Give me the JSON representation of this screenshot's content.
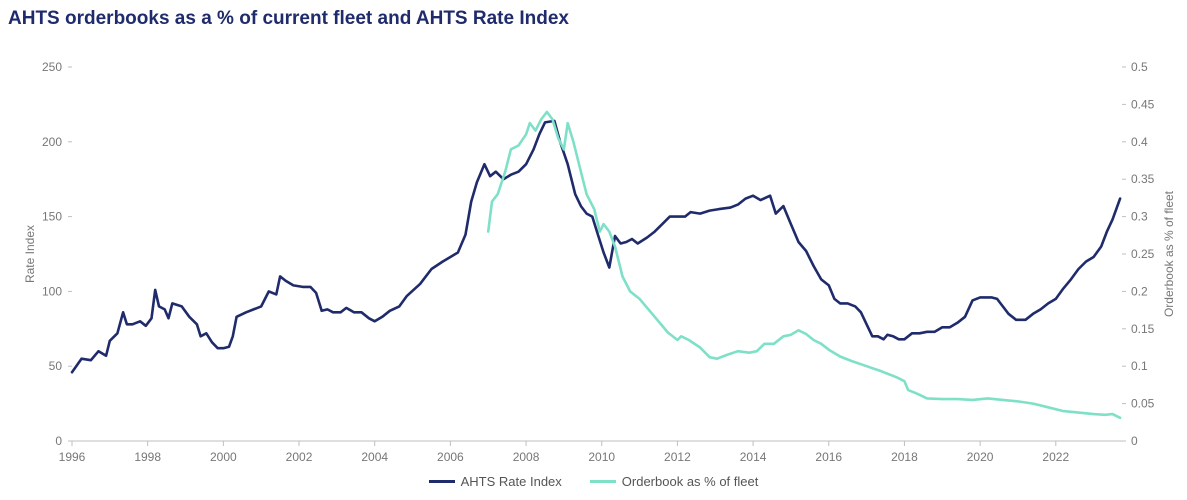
{
  "chart_data": {
    "type": "line",
    "title": "AHTS orderbooks as a % of current fleet and AHTS Rate Index",
    "y_left": {
      "label": "Rate Index",
      "min": 0,
      "max": 250,
      "ticks": [
        0,
        50,
        100,
        150,
        200,
        250
      ]
    },
    "y_right": {
      "label": "Orderbook as % of fleet",
      "min": 0,
      "max": 0.5,
      "ticks": [
        "0",
        "0.05",
        "0.1",
        "0.15",
        "0.2",
        "0.25",
        "0.3",
        "0.35",
        "0.4",
        "0.45",
        "0.5"
      ]
    },
    "x_axis": {
      "min": 1996,
      "max": 2023.75,
      "ticks": [
        1996,
        1998,
        2000,
        2002,
        2004,
        2006,
        2008,
        2010,
        2012,
        2014,
        2016,
        2018,
        2020,
        2022
      ]
    },
    "legend_position": "bottom",
    "series": [
      {
        "name": "AHTS Rate Index",
        "axis": "left",
        "color": "#1f2b6b",
        "points": [
          [
            1996.0,
            46
          ],
          [
            1996.25,
            55
          ],
          [
            1996.5,
            54
          ],
          [
            1996.7,
            60
          ],
          [
            1996.9,
            57
          ],
          [
            1997.0,
            67
          ],
          [
            1997.2,
            72
          ],
          [
            1997.35,
            86
          ],
          [
            1997.45,
            78
          ],
          [
            1997.6,
            78
          ],
          [
            1997.8,
            80
          ],
          [
            1997.95,
            77
          ],
          [
            1998.1,
            82
          ],
          [
            1998.2,
            101
          ],
          [
            1998.3,
            90
          ],
          [
            1998.45,
            88
          ],
          [
            1998.55,
            82
          ],
          [
            1998.65,
            92
          ],
          [
            1998.9,
            90
          ],
          [
            1999.1,
            83
          ],
          [
            1999.3,
            78
          ],
          [
            1999.4,
            70
          ],
          [
            1999.55,
            72
          ],
          [
            1999.7,
            66
          ],
          [
            1999.85,
            62
          ],
          [
            2000.0,
            62
          ],
          [
            2000.15,
            63
          ],
          [
            2000.25,
            70
          ],
          [
            2000.35,
            83
          ],
          [
            2000.6,
            86
          ],
          [
            2001.0,
            90
          ],
          [
            2001.2,
            100
          ],
          [
            2001.4,
            98
          ],
          [
            2001.5,
            110
          ],
          [
            2001.65,
            107
          ],
          [
            2001.85,
            104
          ],
          [
            2002.1,
            103
          ],
          [
            2002.3,
            103
          ],
          [
            2002.45,
            99
          ],
          [
            2002.6,
            87
          ],
          [
            2002.75,
            88
          ],
          [
            2002.9,
            86
          ],
          [
            2003.1,
            86
          ],
          [
            2003.25,
            89
          ],
          [
            2003.45,
            86
          ],
          [
            2003.65,
            86
          ],
          [
            2003.85,
            82
          ],
          [
            2004.0,
            80
          ],
          [
            2004.2,
            83
          ],
          [
            2004.4,
            87
          ],
          [
            2004.65,
            90
          ],
          [
            2004.85,
            97
          ],
          [
            2005.2,
            105
          ],
          [
            2005.5,
            115
          ],
          [
            2005.8,
            120
          ],
          [
            2006.0,
            123
          ],
          [
            2006.2,
            126
          ],
          [
            2006.4,
            138
          ],
          [
            2006.55,
            160
          ],
          [
            2006.7,
            173
          ],
          [
            2006.9,
            185
          ],
          [
            2007.05,
            177
          ],
          [
            2007.2,
            180
          ],
          [
            2007.4,
            175
          ],
          [
            2007.6,
            178
          ],
          [
            2007.8,
            180
          ],
          [
            2008.0,
            185
          ],
          [
            2008.2,
            195
          ],
          [
            2008.35,
            205
          ],
          [
            2008.5,
            213
          ],
          [
            2008.75,
            214
          ],
          [
            2008.9,
            200
          ],
          [
            2009.1,
            185
          ],
          [
            2009.3,
            165
          ],
          [
            2009.45,
            157
          ],
          [
            2009.6,
            152
          ],
          [
            2009.75,
            150
          ],
          [
            2009.9,
            138
          ],
          [
            2010.05,
            126
          ],
          [
            2010.2,
            116
          ],
          [
            2010.35,
            137
          ],
          [
            2010.5,
            132
          ],
          [
            2010.65,
            133
          ],
          [
            2010.8,
            135
          ],
          [
            2010.95,
            132
          ],
          [
            2011.2,
            136
          ],
          [
            2011.4,
            140
          ],
          [
            2011.6,
            145
          ],
          [
            2011.8,
            150
          ],
          [
            2012.0,
            150
          ],
          [
            2012.2,
            150
          ],
          [
            2012.35,
            153
          ],
          [
            2012.6,
            152
          ],
          [
            2012.85,
            154
          ],
          [
            2013.1,
            155
          ],
          [
            2013.4,
            156
          ],
          [
            2013.6,
            158
          ],
          [
            2013.8,
            162
          ],
          [
            2014.0,
            164
          ],
          [
            2014.2,
            161
          ],
          [
            2014.45,
            164
          ],
          [
            2014.6,
            152
          ],
          [
            2014.8,
            157
          ],
          [
            2015.0,
            145
          ],
          [
            2015.2,
            133
          ],
          [
            2015.4,
            127
          ],
          [
            2015.6,
            117
          ],
          [
            2015.8,
            108
          ],
          [
            2016.0,
            104
          ],
          [
            2016.15,
            95
          ],
          [
            2016.3,
            92
          ],
          [
            2016.5,
            92
          ],
          [
            2016.7,
            90
          ],
          [
            2016.85,
            86
          ],
          [
            2017.0,
            78
          ],
          [
            2017.15,
            70
          ],
          [
            2017.3,
            70
          ],
          [
            2017.45,
            68
          ],
          [
            2017.55,
            71
          ],
          [
            2017.7,
            70
          ],
          [
            2017.85,
            68
          ],
          [
            2018.0,
            68
          ],
          [
            2018.2,
            72
          ],
          [
            2018.4,
            72
          ],
          [
            2018.6,
            73
          ],
          [
            2018.8,
            73
          ],
          [
            2019.0,
            76
          ],
          [
            2019.2,
            76
          ],
          [
            2019.4,
            79
          ],
          [
            2019.6,
            83
          ],
          [
            2019.8,
            94
          ],
          [
            2020.0,
            96
          ],
          [
            2020.3,
            96
          ],
          [
            2020.45,
            95
          ],
          [
            2020.6,
            90
          ],
          [
            2020.75,
            85
          ],
          [
            2020.95,
            81
          ],
          [
            2021.2,
            81
          ],
          [
            2021.4,
            85
          ],
          [
            2021.6,
            88
          ],
          [
            2021.8,
            92
          ],
          [
            2022.0,
            95
          ],
          [
            2022.2,
            102
          ],
          [
            2022.4,
            108
          ],
          [
            2022.6,
            115
          ],
          [
            2022.8,
            120
          ],
          [
            2023.0,
            123
          ],
          [
            2023.2,
            130
          ],
          [
            2023.35,
            140
          ],
          [
            2023.5,
            148
          ],
          [
            2023.6,
            155
          ],
          [
            2023.7,
            162
          ]
        ]
      },
      {
        "name": "Orderbook as % of fleet",
        "axis": "right",
        "color": "#7fe0c8",
        "points": [
          [
            2007.0,
            0.28
          ],
          [
            2007.1,
            0.32
          ],
          [
            2007.25,
            0.33
          ],
          [
            2007.45,
            0.36
          ],
          [
            2007.6,
            0.39
          ],
          [
            2007.8,
            0.395
          ],
          [
            2008.0,
            0.41
          ],
          [
            2008.1,
            0.425
          ],
          [
            2008.25,
            0.415
          ],
          [
            2008.4,
            0.43
          ],
          [
            2008.55,
            0.44
          ],
          [
            2008.7,
            0.43
          ],
          [
            2008.85,
            0.405
          ],
          [
            2009.0,
            0.39
          ],
          [
            2009.1,
            0.425
          ],
          [
            2009.25,
            0.4
          ],
          [
            2009.45,
            0.36
          ],
          [
            2009.6,
            0.33
          ],
          [
            2009.8,
            0.31
          ],
          [
            2009.95,
            0.28
          ],
          [
            2010.05,
            0.29
          ],
          [
            2010.2,
            0.28
          ],
          [
            2010.35,
            0.26
          ],
          [
            2010.55,
            0.22
          ],
          [
            2010.75,
            0.2
          ],
          [
            2011.0,
            0.19
          ],
          [
            2011.25,
            0.175
          ],
          [
            2011.5,
            0.16
          ],
          [
            2011.75,
            0.145
          ],
          [
            2012.0,
            0.135
          ],
          [
            2012.1,
            0.14
          ],
          [
            2012.3,
            0.135
          ],
          [
            2012.6,
            0.125
          ],
          [
            2012.85,
            0.112
          ],
          [
            2013.05,
            0.11
          ],
          [
            2013.3,
            0.115
          ],
          [
            2013.6,
            0.12
          ],
          [
            2013.9,
            0.118
          ],
          [
            2014.1,
            0.12
          ],
          [
            2014.3,
            0.13
          ],
          [
            2014.55,
            0.13
          ],
          [
            2014.8,
            0.14
          ],
          [
            2015.0,
            0.142
          ],
          [
            2015.2,
            0.148
          ],
          [
            2015.4,
            0.143
          ],
          [
            2015.6,
            0.135
          ],
          [
            2015.8,
            0.13
          ],
          [
            2016.0,
            0.122
          ],
          [
            2016.3,
            0.113
          ],
          [
            2016.6,
            0.107
          ],
          [
            2017.0,
            0.1
          ],
          [
            2017.4,
            0.093
          ],
          [
            2017.8,
            0.085
          ],
          [
            2018.0,
            0.08
          ],
          [
            2018.1,
            0.068
          ],
          [
            2018.35,
            0.063
          ],
          [
            2018.6,
            0.057
          ],
          [
            2019.0,
            0.056
          ],
          [
            2019.4,
            0.056
          ],
          [
            2019.8,
            0.055
          ],
          [
            2020.2,
            0.057
          ],
          [
            2020.6,
            0.055
          ],
          [
            2021.0,
            0.053
          ],
          [
            2021.4,
            0.05
          ],
          [
            2021.8,
            0.045
          ],
          [
            2022.2,
            0.04
          ],
          [
            2022.6,
            0.038
          ],
          [
            2023.0,
            0.036
          ],
          [
            2023.3,
            0.035
          ],
          [
            2023.5,
            0.036
          ],
          [
            2023.7,
            0.031
          ]
        ]
      }
    ]
  }
}
